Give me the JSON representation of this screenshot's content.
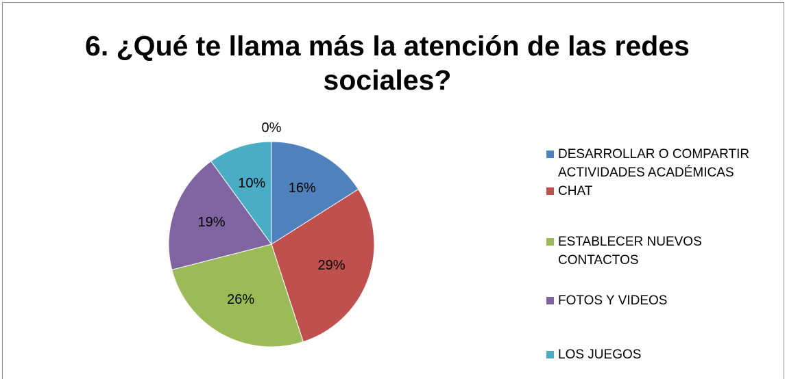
{
  "chart_data": {
    "type": "pie",
    "title": "6.  ¿Qué te llama más la atención de las redes sociales?",
    "categories": [
      "DESARROLLAR O COMPARTIR ACTIVIDADES ACADÉMICAS",
      "CHAT",
      "ESTABLECER NUEVOS CONTACTOS",
      "FOTOS Y VIDEOS",
      "LOS JUEGOS",
      null
    ],
    "values": [
      16,
      29,
      26,
      19,
      10,
      0
    ],
    "value_labels": [
      "16%",
      "29%",
      "26%",
      "19%",
      "10%",
      "0%"
    ],
    "colors": [
      "#4f81bd",
      "#c0504d",
      "#9bbb59",
      "#8064a2",
      "#4bacc6",
      "#f79646"
    ],
    "legend": "right"
  }
}
